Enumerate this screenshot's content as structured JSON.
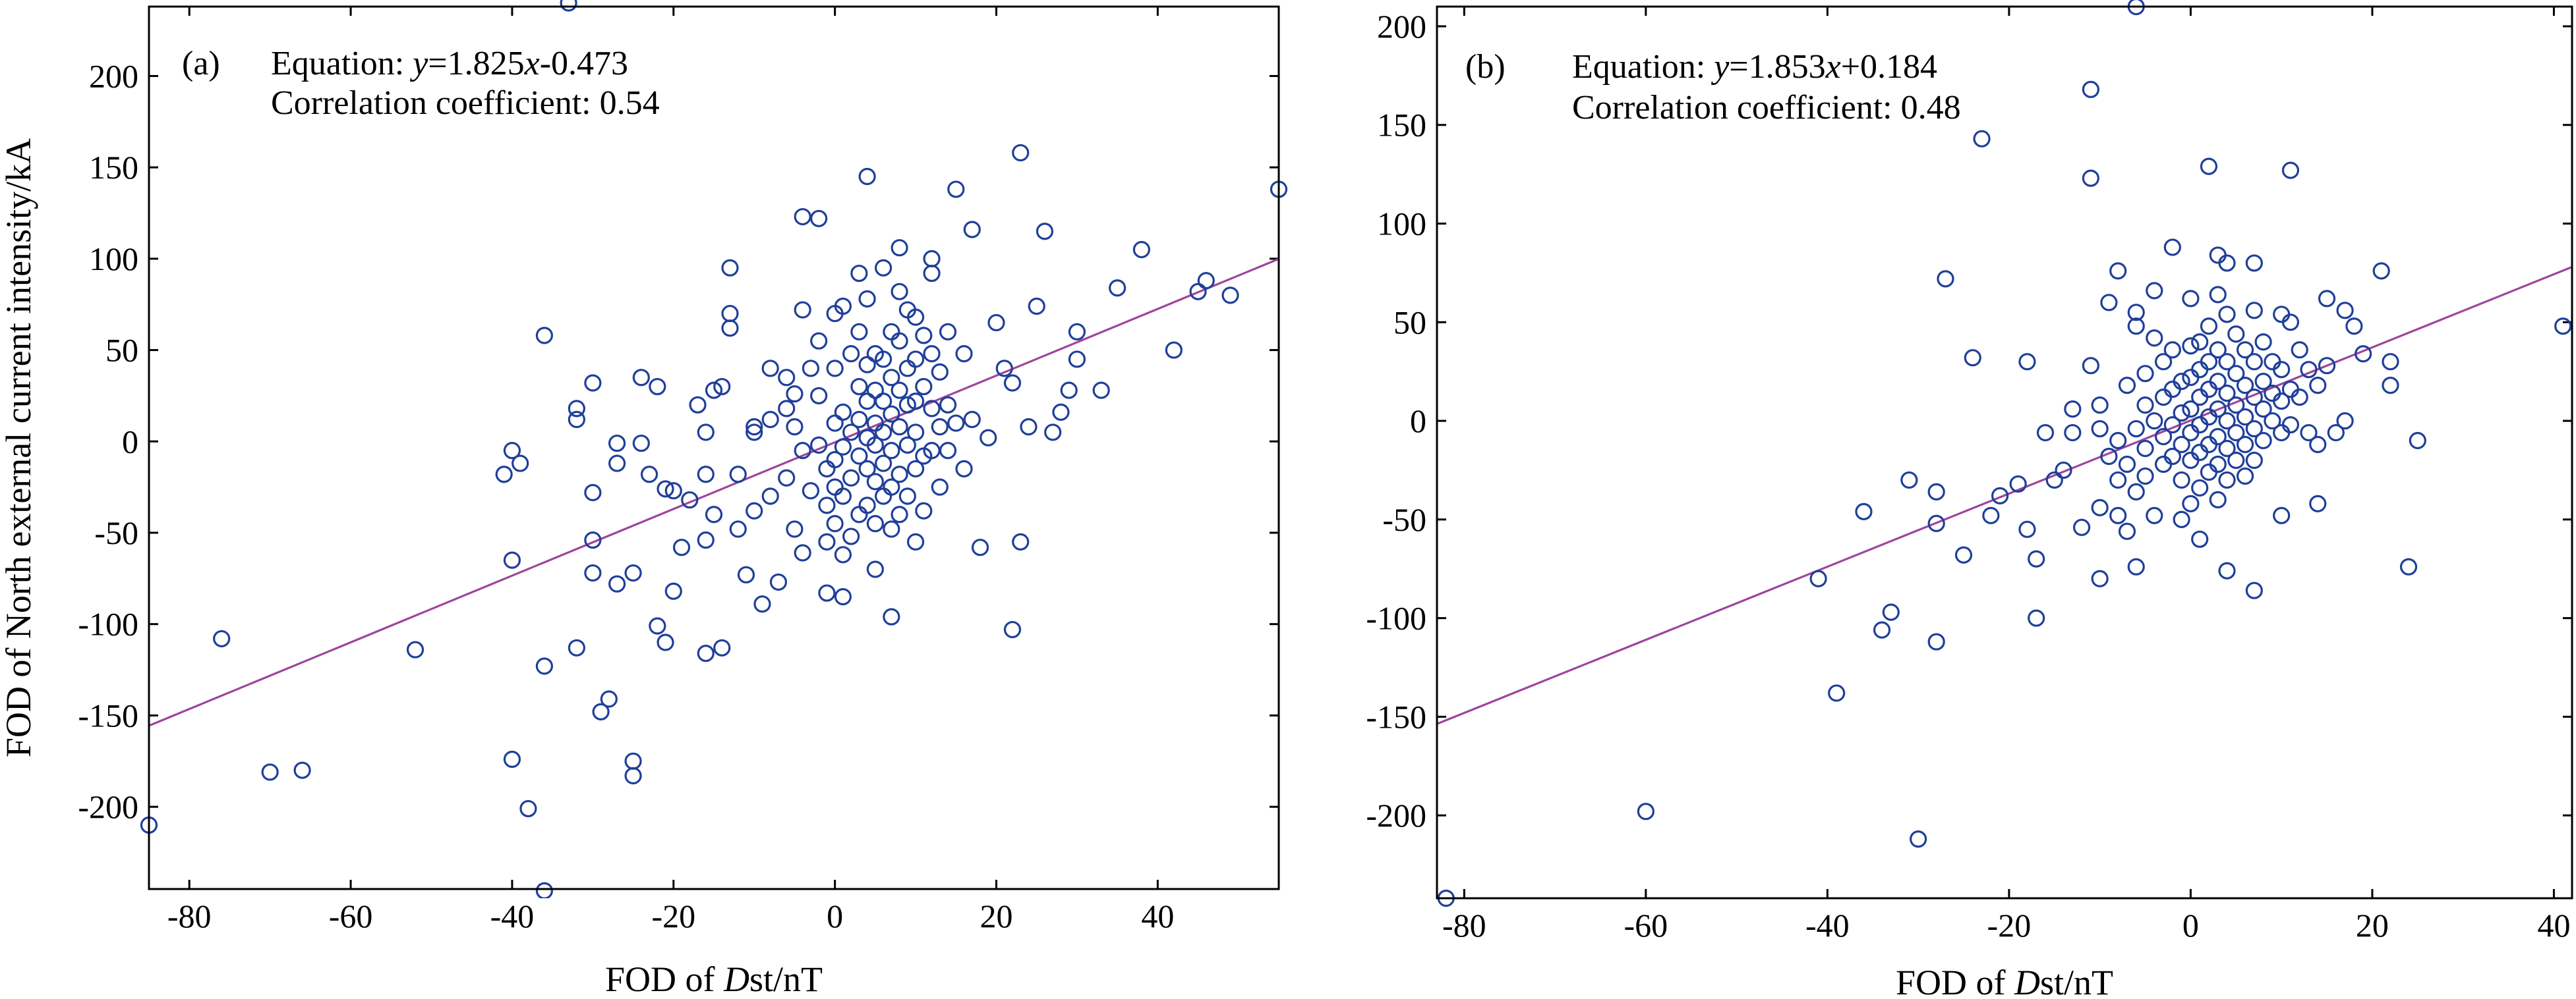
{
  "chart_data": [
    {
      "type": "scatter",
      "panel_label": "(a)",
      "equation": {
        "prefix": "Equation: ",
        "y": "y",
        "mid": "=1.825",
        "x": "x",
        "suffix": "-0.473"
      },
      "correlation": "Correlation coefficient: 0.54",
      "xlabel": {
        "pre": "FOD of ",
        "italic": "D",
        "post": "st/nT"
      },
      "ylabel": "FOD of North external current intensity/kA",
      "xlim": [
        -85,
        55
      ],
      "ylim": [
        -245,
        238
      ],
      "xticks": [
        -80,
        -60,
        -40,
        -20,
        0,
        20,
        40
      ],
      "yticks": [
        -200,
        -150,
        -100,
        -50,
        0,
        50,
        100,
        150,
        200
      ],
      "fit": {
        "slope": 1.825,
        "intercept": -0.473
      },
      "points": [
        [
          -85,
          -210
        ],
        [
          -76,
          -108
        ],
        [
          -70,
          -181
        ],
        [
          -66,
          -180
        ],
        [
          -52,
          -114
        ],
        [
          -41,
          -18
        ],
        [
          -40,
          -5
        ],
        [
          -40,
          -65
        ],
        [
          -40,
          -174
        ],
        [
          -39,
          -12
        ],
        [
          -38,
          -201
        ],
        [
          -36,
          58
        ],
        [
          -36,
          -123
        ],
        [
          -36,
          -246
        ],
        [
          -33,
          240
        ],
        [
          -32,
          18
        ],
        [
          -32,
          12
        ],
        [
          -32,
          -113
        ],
        [
          -30,
          32
        ],
        [
          -30,
          -28
        ],
        [
          -30,
          -54
        ],
        [
          -30,
          -72
        ],
        [
          -29,
          -148
        ],
        [
          -28,
          -141
        ],
        [
          -27,
          -1
        ],
        [
          -27,
          -12
        ],
        [
          -27,
          -78
        ],
        [
          -25,
          -72
        ],
        [
          -25,
          -175
        ],
        [
          -25,
          -183
        ],
        [
          -24,
          35
        ],
        [
          -24,
          -1
        ],
        [
          -23,
          -18
        ],
        [
          -22,
          30
        ],
        [
          -22,
          -101
        ],
        [
          -21,
          -26
        ],
        [
          -21,
          -110
        ],
        [
          -20,
          -27
        ],
        [
          -20,
          -82
        ],
        [
          -19,
          -58
        ],
        [
          -18,
          -32
        ],
        [
          -17,
          20
        ],
        [
          -16,
          5
        ],
        [
          -16,
          -18
        ],
        [
          -16,
          -54
        ],
        [
          -16,
          -116
        ],
        [
          -15,
          28
        ],
        [
          -15,
          -40
        ],
        [
          -14,
          30
        ],
        [
          -14,
          -113
        ],
        [
          -13,
          95
        ],
        [
          -13,
          70
        ],
        [
          -13,
          62
        ],
        [
          -12,
          -18
        ],
        [
          -12,
          -48
        ],
        [
          -11,
          -73
        ],
        [
          -10,
          8
        ],
        [
          -10,
          5
        ],
        [
          -10,
          -38
        ],
        [
          -9,
          -89
        ],
        [
          -8,
          40
        ],
        [
          -8,
          12
        ],
        [
          -8,
          -30
        ],
        [
          -7,
          -77
        ],
        [
          -6,
          35
        ],
        [
          -6,
          18
        ],
        [
          -6,
          -20
        ],
        [
          -5,
          26
        ],
        [
          -5,
          8
        ],
        [
          -5,
          -48
        ],
        [
          -4,
          123
        ],
        [
          -4,
          72
        ],
        [
          -4,
          -5
        ],
        [
          -4,
          -61
        ],
        [
          -3,
          40
        ],
        [
          -3,
          -27
        ],
        [
          -2,
          122
        ],
        [
          -2,
          55
        ],
        [
          -2,
          25
        ],
        [
          -2,
          -2
        ],
        [
          -1,
          -15
        ],
        [
          -1,
          -35
        ],
        [
          -1,
          -55
        ],
        [
          -1,
          -83
        ],
        [
          0,
          70
        ],
        [
          0,
          40
        ],
        [
          0,
          10
        ],
        [
          0,
          -10
        ],
        [
          0,
          -25
        ],
        [
          0,
          -45
        ],
        [
          1,
          74
        ],
        [
          1,
          16
        ],
        [
          1,
          -3
        ],
        [
          1,
          -30
        ],
        [
          1,
          -62
        ],
        [
          1,
          -85
        ],
        [
          2,
          48
        ],
        [
          2,
          5
        ],
        [
          2,
          -20
        ],
        [
          2,
          -52
        ],
        [
          3,
          92
        ],
        [
          3,
          60
        ],
        [
          3,
          30
        ],
        [
          3,
          12
        ],
        [
          3,
          -8
        ],
        [
          3,
          -40
        ],
        [
          4,
          145
        ],
        [
          4,
          78
        ],
        [
          4,
          42
        ],
        [
          4,
          22
        ],
        [
          4,
          2
        ],
        [
          4,
          -15
        ],
        [
          4,
          -35
        ],
        [
          5,
          48
        ],
        [
          5,
          28
        ],
        [
          5,
          10
        ],
        [
          5,
          -2
        ],
        [
          5,
          -22
        ],
        [
          5,
          -45
        ],
        [
          5,
          -70
        ],
        [
          6,
          95
        ],
        [
          6,
          45
        ],
        [
          6,
          22
        ],
        [
          6,
          5
        ],
        [
          6,
          -12
        ],
        [
          6,
          -30
        ],
        [
          7,
          60
        ],
        [
          7,
          35
        ],
        [
          7,
          15
        ],
        [
          7,
          -5
        ],
        [
          7,
          -25
        ],
        [
          7,
          -48
        ],
        [
          7,
          -96
        ],
        [
          8,
          106
        ],
        [
          8,
          82
        ],
        [
          8,
          55
        ],
        [
          8,
          28
        ],
        [
          8,
          8
        ],
        [
          8,
          -18
        ],
        [
          8,
          -40
        ],
        [
          9,
          72
        ],
        [
          9,
          40
        ],
        [
          9,
          20
        ],
        [
          9,
          -2
        ],
        [
          9,
          -30
        ],
        [
          10,
          68
        ],
        [
          10,
          45
        ],
        [
          10,
          22
        ],
        [
          10,
          5
        ],
        [
          10,
          -15
        ],
        [
          10,
          -55
        ],
        [
          11,
          58
        ],
        [
          11,
          30
        ],
        [
          11,
          -8
        ],
        [
          11,
          -38
        ],
        [
          12,
          100
        ],
        [
          12,
          92
        ],
        [
          12,
          48
        ],
        [
          12,
          18
        ],
        [
          12,
          -5
        ],
        [
          13,
          38
        ],
        [
          13,
          8
        ],
        [
          13,
          -25
        ],
        [
          14,
          60
        ],
        [
          14,
          20
        ],
        [
          14,
          -5
        ],
        [
          15,
          138
        ],
        [
          15,
          10
        ],
        [
          16,
          48
        ],
        [
          16,
          -15
        ],
        [
          17,
          116
        ],
        [
          17,
          12
        ],
        [
          18,
          -58
        ],
        [
          19,
          2
        ],
        [
          20,
          65
        ],
        [
          21,
          40
        ],
        [
          22,
          -103
        ],
        [
          22,
          32
        ],
        [
          23,
          158
        ],
        [
          23,
          -55
        ],
        [
          24,
          8
        ],
        [
          25,
          74
        ],
        [
          26,
          115
        ],
        [
          27,
          5
        ],
        [
          28,
          16
        ],
        [
          29,
          28
        ],
        [
          30,
          60
        ],
        [
          30,
          45
        ],
        [
          33,
          28
        ],
        [
          35,
          84
        ],
        [
          38,
          105
        ],
        [
          42,
          50
        ],
        [
          45,
          82
        ],
        [
          46,
          88
        ],
        [
          49,
          80
        ],
        [
          55,
          138
        ]
      ]
    },
    {
      "type": "scatter",
      "panel_label": "(b)",
      "equation": {
        "prefix": "Equation: ",
        "y": "y",
        "mid": "=1.853",
        "x": "x",
        "suffix": "+0.184"
      },
      "correlation": "Correlation coefficient: 0.48",
      "xlabel": {
        "pre": "FOD of ",
        "italic": "D",
        "post": "st/nT"
      },
      "ylabel": "",
      "xlim": [
        -83,
        42
      ],
      "ylim": [
        -242,
        210
      ],
      "xticks": [
        -80,
        -60,
        -40,
        -20,
        0,
        20,
        40
      ],
      "yticks": [
        -200,
        -150,
        -100,
        -50,
        0,
        50,
        100,
        150,
        200
      ],
      "fit": {
        "slope": 1.853,
        "intercept": 0.184
      },
      "points": [
        [
          -82,
          -242
        ],
        [
          -60,
          -198
        ],
        [
          -41,
          -80
        ],
        [
          -39,
          -138
        ],
        [
          -36,
          -46
        ],
        [
          -34,
          -106
        ],
        [
          -33,
          -97
        ],
        [
          -31,
          -30
        ],
        [
          -30,
          -212
        ],
        [
          -28,
          -112
        ],
        [
          -28,
          -52
        ],
        [
          -28,
          -36
        ],
        [
          -27,
          72
        ],
        [
          -25,
          -68
        ],
        [
          -24,
          32
        ],
        [
          -23,
          143
        ],
        [
          -22,
          -48
        ],
        [
          -21,
          -38
        ],
        [
          -19,
          -32
        ],
        [
          -18,
          -55
        ],
        [
          -18,
          30
        ],
        [
          -17,
          -70
        ],
        [
          -17,
          -100
        ],
        [
          -16,
          -6
        ],
        [
          -15,
          -30
        ],
        [
          -14,
          -25
        ],
        [
          -13,
          6
        ],
        [
          -13,
          -6
        ],
        [
          -12,
          -54
        ],
        [
          -11,
          168
        ],
        [
          -11,
          123
        ],
        [
          -11,
          28
        ],
        [
          -10,
          8
        ],
        [
          -10,
          -4
        ],
        [
          -10,
          -44
        ],
        [
          -10,
          -80
        ],
        [
          -9,
          -18
        ],
        [
          -9,
          60
        ],
        [
          -8,
          76
        ],
        [
          -8,
          -10
        ],
        [
          -8,
          -30
        ],
        [
          -8,
          -48
        ],
        [
          -7,
          -56
        ],
        [
          -7,
          18
        ],
        [
          -7,
          -22
        ],
        [
          -6,
          48
        ],
        [
          -6,
          55
        ],
        [
          -6,
          -4
        ],
        [
          -6,
          -36
        ],
        [
          -6,
          -74
        ],
        [
          -5,
          24
        ],
        [
          -5,
          8
        ],
        [
          -5,
          -14
        ],
        [
          -5,
          -28
        ],
        [
          -4,
          66
        ],
        [
          -4,
          42
        ],
        [
          -4,
          0
        ],
        [
          -4,
          -48
        ],
        [
          -3,
          30
        ],
        [
          -3,
          12
        ],
        [
          -3,
          -8
        ],
        [
          -3,
          -22
        ],
        [
          -2,
          88
        ],
        [
          -2,
          36
        ],
        [
          -2,
          16
        ],
        [
          -2,
          -2
        ],
        [
          -2,
          -18
        ],
        [
          -1,
          20
        ],
        [
          -1,
          4
        ],
        [
          -1,
          -12
        ],
        [
          -1,
          -30
        ],
        [
          -1,
          -50
        ],
        [
          0,
          62
        ],
        [
          0,
          38
        ],
        [
          0,
          22
        ],
        [
          0,
          6
        ],
        [
          0,
          -6
        ],
        [
          0,
          -20
        ],
        [
          0,
          -42
        ],
        [
          1,
          40
        ],
        [
          1,
          26
        ],
        [
          1,
          12
        ],
        [
          1,
          -2
        ],
        [
          1,
          -16
        ],
        [
          1,
          -34
        ],
        [
          1,
          -60
        ],
        [
          2,
          129
        ],
        [
          2,
          48
        ],
        [
          2,
          30
        ],
        [
          2,
          16
        ],
        [
          2,
          2
        ],
        [
          2,
          -12
        ],
        [
          2,
          -26
        ],
        [
          3,
          84
        ],
        [
          3,
          64
        ],
        [
          3,
          36
        ],
        [
          3,
          20
        ],
        [
          3,
          6
        ],
        [
          3,
          -8
        ],
        [
          3,
          -22
        ],
        [
          3,
          -40
        ],
        [
          4,
          80
        ],
        [
          4,
          54
        ],
        [
          4,
          30
        ],
        [
          4,
          14
        ],
        [
          4,
          0
        ],
        [
          4,
          -14
        ],
        [
          4,
          -30
        ],
        [
          4,
          -76
        ],
        [
          5,
          44
        ],
        [
          5,
          24
        ],
        [
          5,
          8
        ],
        [
          5,
          -6
        ],
        [
          5,
          -20
        ],
        [
          6,
          36
        ],
        [
          6,
          18
        ],
        [
          6,
          2
        ],
        [
          6,
          -12
        ],
        [
          6,
          -28
        ],
        [
          7,
          80
        ],
        [
          7,
          56
        ],
        [
          7,
          30
        ],
        [
          7,
          12
        ],
        [
          7,
          -4
        ],
        [
          7,
          -20
        ],
        [
          7,
          -86
        ],
        [
          8,
          40
        ],
        [
          8,
          20
        ],
        [
          8,
          6
        ],
        [
          8,
          -10
        ],
        [
          9,
          30
        ],
        [
          9,
          14
        ],
        [
          9,
          0
        ],
        [
          10,
          54
        ],
        [
          10,
          26
        ],
        [
          10,
          10
        ],
        [
          10,
          -6
        ],
        [
          10,
          -48
        ],
        [
          11,
          127
        ],
        [
          11,
          50
        ],
        [
          11,
          16
        ],
        [
          11,
          -2
        ],
        [
          12,
          36
        ],
        [
          12,
          12
        ],
        [
          13,
          26
        ],
        [
          13,
          -6
        ],
        [
          14,
          18
        ],
        [
          14,
          -42
        ],
        [
          14,
          -12
        ],
        [
          15,
          62
        ],
        [
          15,
          28
        ],
        [
          16,
          -6
        ],
        [
          17,
          56
        ],
        [
          17,
          0
        ],
        [
          18,
          48
        ],
        [
          19,
          34
        ],
        [
          21,
          76
        ],
        [
          22,
          30
        ],
        [
          22,
          18
        ],
        [
          24,
          -74
        ],
        [
          25,
          -10
        ],
        [
          41,
          48
        ],
        [
          -6,
          210
        ]
      ]
    }
  ]
}
